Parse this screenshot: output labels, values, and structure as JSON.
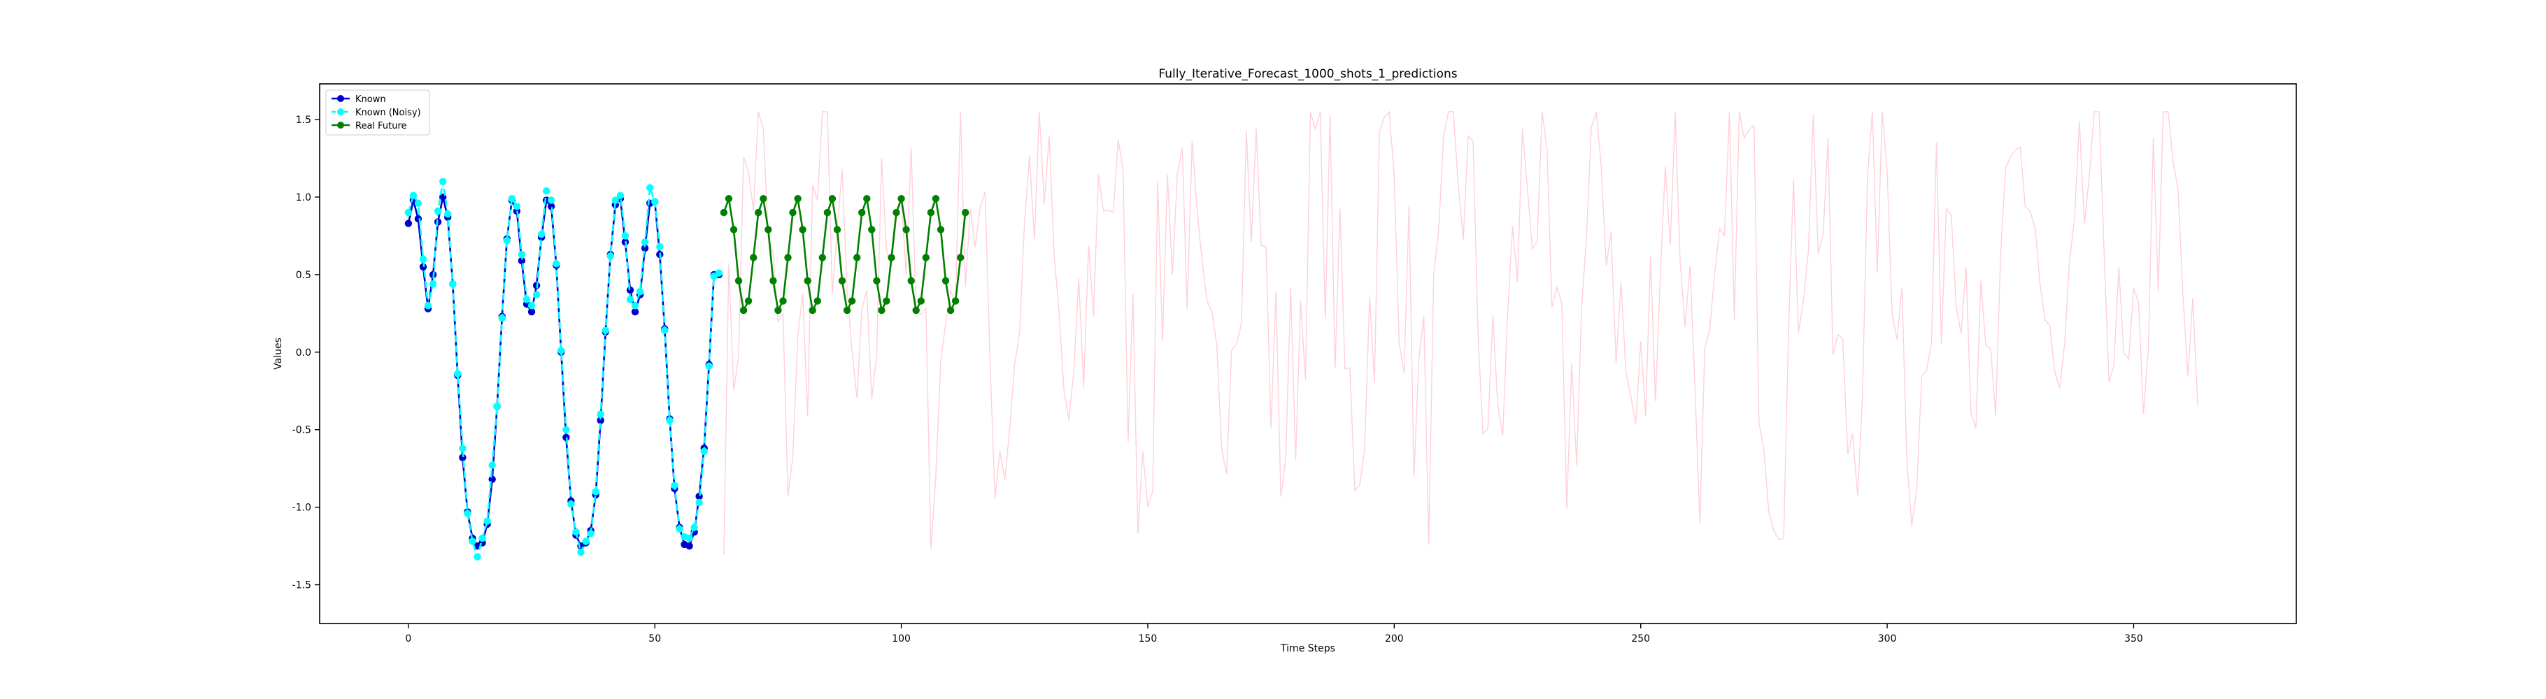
{
  "chart_data": {
    "type": "line",
    "title": "Fully_Iterative_Forecast_1000_shots_1_predictions",
    "xlabel": "Time Steps",
    "ylabel": "Values",
    "xlim": [
      -18,
      383
    ],
    "ylim": [
      -1.75,
      1.73
    ],
    "xticks": [
      0,
      50,
      100,
      150,
      200,
      250,
      300,
      350
    ],
    "yticks": [
      -1.5,
      -1.0,
      -0.5,
      0.0,
      0.5,
      1.0,
      1.5
    ],
    "grid": false,
    "legend_position": "upper-left",
    "colors": {
      "known": "#0000cd",
      "known_noisy": "#00ffff",
      "real_future": "#008000",
      "predicted": "#ffc0cb"
    },
    "series": [
      {
        "name": "Known",
        "color": "#0000cd",
        "marker": "circle",
        "x_start": 0,
        "values": [
          0.83,
          0.98,
          0.86,
          0.55,
          0.28,
          0.5,
          0.84,
          1.0,
          0.87,
          0.44,
          -0.15,
          -0.68,
          -1.03,
          -1.2,
          -1.25,
          -1.23,
          -1.11,
          -0.82,
          -0.35,
          0.23,
          0.73,
          0.98,
          0.91,
          0.59,
          0.31,
          0.26,
          0.43,
          0.74,
          0.98,
          0.94,
          0.56,
          0.0,
          -0.55,
          -0.96,
          -1.18,
          -1.25,
          -1.23,
          -1.15,
          -0.92,
          -0.44,
          0.13,
          0.63,
          0.95,
          0.99,
          0.71,
          0.4,
          0.26,
          0.37,
          0.67,
          0.96,
          0.97,
          0.63,
          0.15,
          -0.43,
          -0.88,
          -1.13,
          -1.24,
          -1.25,
          -1.16,
          -0.93,
          -0.62,
          -0.08,
          0.5,
          0.5
        ]
      },
      {
        "name": "Known (Noisy)",
        "color": "#00ffff",
        "marker": "circle",
        "linestyle": "dashed",
        "x_start": 0,
        "values": [
          0.9,
          1.01,
          0.96,
          0.6,
          0.3,
          0.44,
          0.91,
          1.1,
          0.89,
          0.44,
          -0.14,
          -0.62,
          -1.04,
          -1.22,
          -1.32,
          -1.2,
          -1.09,
          -0.73,
          -0.35,
          0.22,
          0.72,
          0.99,
          0.94,
          0.63,
          0.34,
          0.3,
          0.37,
          0.76,
          1.04,
          0.98,
          0.57,
          0.01,
          -0.5,
          -0.98,
          -1.16,
          -1.29,
          -1.22,
          -1.17,
          -0.9,
          -0.4,
          0.14,
          0.62,
          0.98,
          1.01,
          0.75,
          0.34,
          0.3,
          0.39,
          0.71,
          1.06,
          0.97,
          0.68,
          0.14,
          -0.44,
          -0.86,
          -1.14,
          -1.19,
          -1.2,
          -1.13,
          -0.97,
          -0.64,
          -0.09,
          0.49,
          0.51
        ]
      },
      {
        "name": "Real Future",
        "color": "#008000",
        "marker": "circle",
        "x_start": 64,
        "values": [
          0.9,
          0.99,
          0.79,
          0.46,
          0.27,
          0.33,
          0.61,
          0.9,
          0.99,
          0.79,
          0.46,
          0.27,
          0.33,
          0.61,
          0.9,
          0.99,
          0.79,
          0.46,
          0.27,
          0.33,
          0.61,
          0.9,
          0.99,
          0.79,
          0.46,
          0.27,
          0.33,
          0.61,
          0.9,
          0.99,
          0.79,
          0.46,
          0.27,
          0.33,
          0.61,
          0.9,
          0.99,
          0.79,
          0.46,
          0.27,
          0.33,
          0.61,
          0.9,
          0.99,
          0.79,
          0.46,
          0.27,
          0.33,
          0.61,
          0.9
        ]
      }
    ]
  }
}
